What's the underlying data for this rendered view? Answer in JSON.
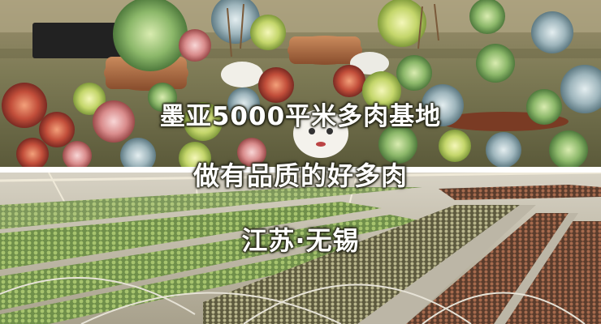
{
  "banner": {
    "line1": "墨亚5000平米多肉基地",
    "line2": "做有品质的好多肉",
    "line3": "江苏·无锡"
  },
  "photos": {
    "top": "succulent-pots-closeup",
    "bottom": "greenhouse-succulent-beds"
  }
}
